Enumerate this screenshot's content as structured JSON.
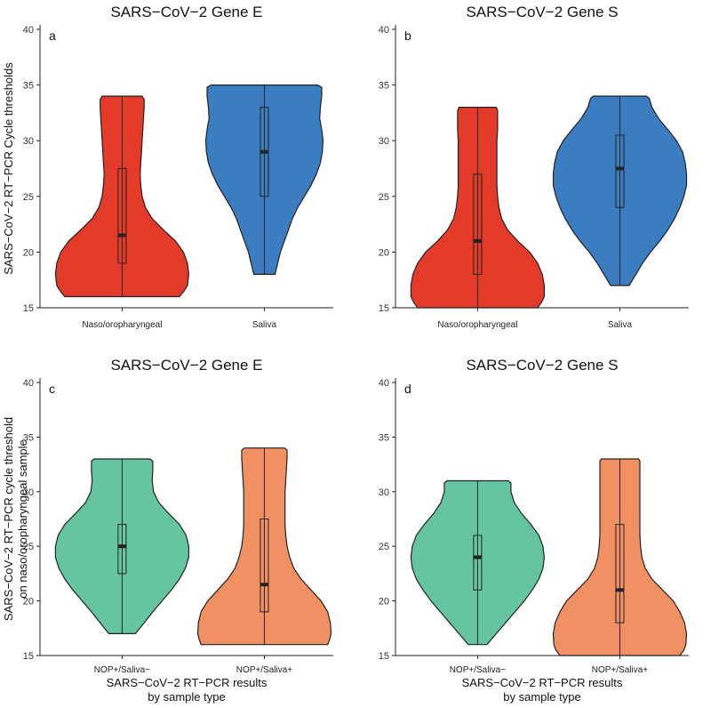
{
  "colors": {
    "red": "#e43a2a",
    "blue": "#3b7dc1",
    "green": "#66c5a1",
    "orange": "#f19062"
  },
  "chart_data": [
    {
      "type": "violin",
      "panel": "a",
      "title": "SARS−CoV−2 Gene E",
      "ylabel": [
        "SARS−CoV−2 RT−PCR Cycle thresholds"
      ],
      "xlabel": [],
      "ylim": [
        15,
        40
      ],
      "yticks": [
        "15",
        "20",
        "25",
        "30",
        "35",
        "40"
      ],
      "categories": [
        "Naso/oropharyngeal",
        "Saliva"
      ],
      "series": [
        {
          "name": "Naso/oropharyngeal",
          "color": "red",
          "min": 16,
          "max": 34,
          "q1": 19,
          "median": 21.5,
          "q3": 27.5,
          "profile": [
            [
              16,
              0.86
            ],
            [
              16.5,
              0.93
            ],
            [
              17,
              0.98
            ],
            [
              18,
              1.0
            ],
            [
              19,
              0.98
            ],
            [
              20,
              0.92
            ],
            [
              21,
              0.8
            ],
            [
              22,
              0.62
            ],
            [
              23,
              0.45
            ],
            [
              24,
              0.35
            ],
            [
              25,
              0.3
            ],
            [
              26,
              0.28
            ],
            [
              27,
              0.27
            ],
            [
              28,
              0.28
            ],
            [
              29,
              0.29
            ],
            [
              30,
              0.3
            ],
            [
              31,
              0.31
            ],
            [
              32,
              0.32
            ],
            [
              33,
              0.33
            ],
            [
              33.7,
              0.33
            ],
            [
              34,
              0.3
            ]
          ]
        },
        {
          "name": "Saliva",
          "color": "blue",
          "min": 18,
          "max": 35,
          "q1": 25,
          "median": 29,
          "q3": 33,
          "profile": [
            [
              18,
              0.16
            ],
            [
              19,
              0.2
            ],
            [
              20,
              0.24
            ],
            [
              21,
              0.3
            ],
            [
              22,
              0.36
            ],
            [
              23,
              0.42
            ],
            [
              24,
              0.5
            ],
            [
              25,
              0.6
            ],
            [
              26,
              0.7
            ],
            [
              27,
              0.78
            ],
            [
              28,
              0.84
            ],
            [
              29,
              0.87
            ],
            [
              30,
              0.88
            ],
            [
              31,
              0.86
            ],
            [
              32,
              0.83
            ],
            [
              33,
              0.84
            ],
            [
              34,
              0.86
            ],
            [
              34.8,
              0.86
            ],
            [
              35,
              0.8
            ]
          ]
        }
      ]
    },
    {
      "type": "violin",
      "panel": "b",
      "title": "SARS−CoV−2 Gene S",
      "ylabel": [],
      "xlabel": [],
      "ylim": [
        15,
        40
      ],
      "yticks": [
        "15",
        "20",
        "25",
        "30",
        "35",
        "40"
      ],
      "categories": [
        "Naso/oropharyngeal",
        "Saliva"
      ],
      "series": [
        {
          "name": "Naso/oropharyngeal",
          "color": "red",
          "min": 15,
          "max": 33,
          "q1": 18,
          "median": 21,
          "q3": 27,
          "profile": [
            [
              15,
              0.9
            ],
            [
              15.5,
              0.96
            ],
            [
              16,
              1.0
            ],
            [
              17,
              1.0
            ],
            [
              18,
              0.97
            ],
            [
              19,
              0.9
            ],
            [
              20,
              0.78
            ],
            [
              21,
              0.6
            ],
            [
              22,
              0.45
            ],
            [
              23,
              0.36
            ],
            [
              24,
              0.32
            ],
            [
              25,
              0.3
            ],
            [
              26,
              0.29
            ],
            [
              27,
              0.29
            ],
            [
              28,
              0.29
            ],
            [
              29,
              0.29
            ],
            [
              30,
              0.29
            ],
            [
              31,
              0.3
            ],
            [
              32,
              0.3
            ],
            [
              32.7,
              0.3
            ],
            [
              33,
              0.28
            ]
          ]
        },
        {
          "name": "Saliva",
          "color": "blue",
          "min": 17,
          "max": 34,
          "q1": 24,
          "median": 27.5,
          "q3": 30.5,
          "profile": [
            [
              17,
              0.14
            ],
            [
              18,
              0.24
            ],
            [
              19,
              0.34
            ],
            [
              20,
              0.46
            ],
            [
              21,
              0.6
            ],
            [
              22,
              0.72
            ],
            [
              23,
              0.82
            ],
            [
              24,
              0.9
            ],
            [
              25,
              0.96
            ],
            [
              26,
              1.0
            ],
            [
              27,
              1.0
            ],
            [
              28,
              0.98
            ],
            [
              29,
              0.94
            ],
            [
              30,
              0.85
            ],
            [
              31,
              0.72
            ],
            [
              32,
              0.58
            ],
            [
              33,
              0.48
            ],
            [
              33.8,
              0.44
            ],
            [
              34,
              0.4
            ]
          ]
        }
      ]
    },
    {
      "type": "violin",
      "panel": "c",
      "title": "SARS−CoV−2 Gene E",
      "ylabel": [
        "SARS−CoV−2 RT−PCR cycle threshold",
        "on naso/oropharyngeal sample"
      ],
      "xlabel": [
        "SARS−CoV−2 RT−PCR results",
        "by sample type"
      ],
      "ylim": [
        15,
        40
      ],
      "yticks": [
        "15",
        "20",
        "25",
        "30",
        "35",
        "40"
      ],
      "categories": [
        "NOP+/Saliva−",
        "NOP+/Saliva+"
      ],
      "series": [
        {
          "name": "NOP+/Saliva−",
          "color": "green",
          "min": 17,
          "max": 33,
          "q1": 22.5,
          "median": 25,
          "q3": 27,
          "profile": [
            [
              17,
              0.2
            ],
            [
              18,
              0.33
            ],
            [
              19,
              0.46
            ],
            [
              20,
              0.6
            ],
            [
              21,
              0.74
            ],
            [
              22,
              0.86
            ],
            [
              23,
              0.95
            ],
            [
              24,
              1.0
            ],
            [
              25,
              1.0
            ],
            [
              26,
              0.96
            ],
            [
              27,
              0.86
            ],
            [
              28,
              0.7
            ],
            [
              29,
              0.55
            ],
            [
              30,
              0.47
            ],
            [
              31,
              0.45
            ],
            [
              32,
              0.46
            ],
            [
              32.8,
              0.46
            ],
            [
              33,
              0.42
            ]
          ]
        },
        {
          "name": "NOP+/Saliva+",
          "color": "orange",
          "min": 16,
          "max": 34,
          "q1": 19,
          "median": 21.5,
          "q3": 27.5,
          "profile": [
            [
              16,
              0.95
            ],
            [
              16.5,
              0.98
            ],
            [
              17,
              1.0
            ],
            [
              18,
              0.99
            ],
            [
              19,
              0.95
            ],
            [
              20,
              0.85
            ],
            [
              21,
              0.7
            ],
            [
              22,
              0.55
            ],
            [
              23,
              0.44
            ],
            [
              24,
              0.38
            ],
            [
              25,
              0.34
            ],
            [
              26,
              0.32
            ],
            [
              27,
              0.31
            ],
            [
              28,
              0.31
            ],
            [
              29,
              0.31
            ],
            [
              30,
              0.31
            ],
            [
              31,
              0.32
            ],
            [
              32,
              0.33
            ],
            [
              33,
              0.34
            ],
            [
              33.8,
              0.34
            ],
            [
              34,
              0.3
            ]
          ]
        }
      ]
    },
    {
      "type": "violin",
      "panel": "d",
      "title": "SARS−CoV−2 Gene S",
      "ylabel": [],
      "xlabel": [
        "SARS−CoV−2 RT−PCR results",
        "by sample type"
      ],
      "ylim": [
        15,
        40
      ],
      "yticks": [
        "15",
        "20",
        "25",
        "30",
        "35",
        "40"
      ],
      "categories": [
        "NOP+/Saliva−",
        "NOP+/Saliva+"
      ],
      "series": [
        {
          "name": "NOP+/Saliva−",
          "color": "green",
          "min": 16,
          "max": 31,
          "q1": 21,
          "median": 24,
          "q3": 26,
          "profile": [
            [
              16,
              0.14
            ],
            [
              17,
              0.28
            ],
            [
              18,
              0.42
            ],
            [
              19,
              0.56
            ],
            [
              20,
              0.7
            ],
            [
              21,
              0.82
            ],
            [
              22,
              0.92
            ],
            [
              23,
              0.98
            ],
            [
              24,
              1.0
            ],
            [
              25,
              0.98
            ],
            [
              26,
              0.92
            ],
            [
              27,
              0.8
            ],
            [
              28,
              0.66
            ],
            [
              29,
              0.55
            ],
            [
              30,
              0.5
            ],
            [
              30.8,
              0.5
            ],
            [
              31,
              0.46
            ]
          ]
        },
        {
          "name": "NOP+/Saliva+",
          "color": "orange",
          "min": 15,
          "max": 33,
          "q1": 18,
          "median": 21,
          "q3": 27,
          "profile": [
            [
              15,
              0.9
            ],
            [
              15.5,
              0.96
            ],
            [
              16,
              0.99
            ],
            [
              17,
              1.0
            ],
            [
              18,
              0.97
            ],
            [
              19,
              0.9
            ],
            [
              20,
              0.8
            ],
            [
              21,
              0.64
            ],
            [
              22,
              0.48
            ],
            [
              23,
              0.38
            ],
            [
              24,
              0.33
            ],
            [
              25,
              0.31
            ],
            [
              26,
              0.3
            ],
            [
              27,
              0.3
            ],
            [
              28,
              0.3
            ],
            [
              29,
              0.3
            ],
            [
              30,
              0.3
            ],
            [
              31,
              0.3
            ],
            [
              32,
              0.3
            ],
            [
              32.8,
              0.3
            ],
            [
              33,
              0.28
            ]
          ]
        }
      ]
    }
  ]
}
